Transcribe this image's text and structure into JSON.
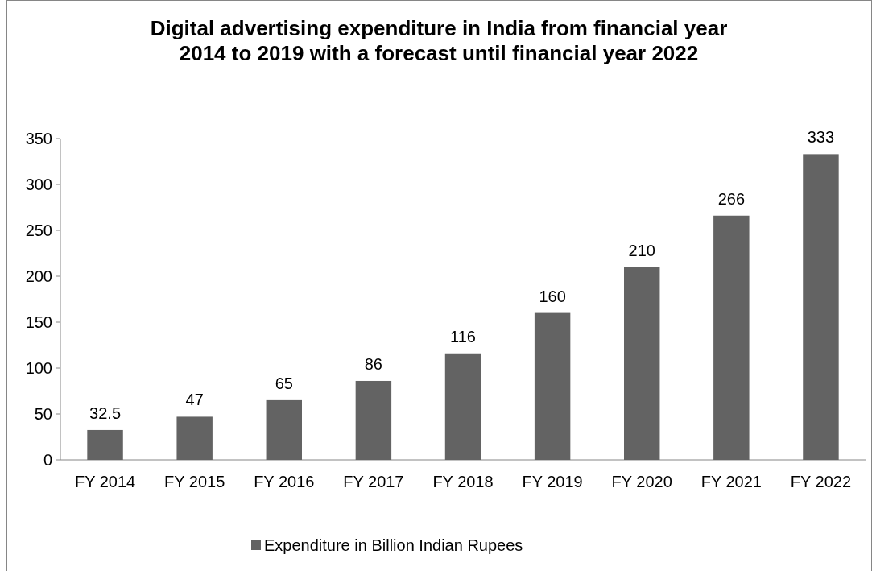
{
  "chart_data": {
    "type": "bar",
    "title": "Digital advertising expenditure in India from financial year 2014 to 2019 with a forecast until financial year 2022",
    "categories": [
      "FY 2014",
      "FY 2015",
      "FY 2016",
      "FY 2017",
      "FY 2018",
      "FY 2019",
      "FY 2020",
      "FY 2021",
      "FY 2022"
    ],
    "series": [
      {
        "name": "Expenditure in Billion Indian Rupees",
        "color": "#636363",
        "values": [
          32.5,
          47,
          65,
          86,
          116,
          160,
          210,
          266,
          333
        ]
      }
    ],
    "ylim": [
      0,
      350
    ],
    "yticks": [
      0,
      50,
      100,
      150,
      200,
      250,
      300,
      350
    ],
    "grid": false,
    "legend": "bottom",
    "data_labels": true
  }
}
